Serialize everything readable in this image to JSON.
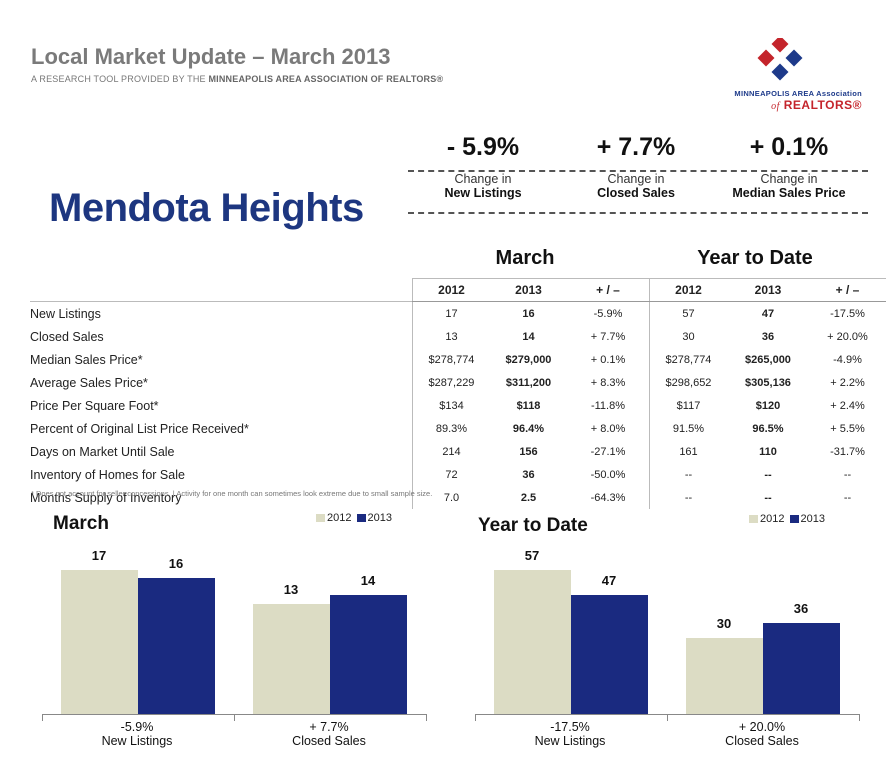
{
  "header": {
    "title": "Local Market Update – March 2013",
    "subtitle_pre": "A RESEARCH TOOL PROVIDED BY THE ",
    "subtitle_org": "MINNEAPOLIS AREA ASSOCIATION OF REALTORS®"
  },
  "logo": {
    "line1": "MINNEAPOLIS AREA Association",
    "of": "of",
    "line2": "REALTORS®"
  },
  "city": "Mendota Heights",
  "kpis": [
    {
      "value": "- 5.9%",
      "line1": "Change in",
      "line2": "New Listings"
    },
    {
      "value": "+ 7.7%",
      "line1": "Change in",
      "line2": "Closed Sales"
    },
    {
      "value": "+ 0.1%",
      "line1": "Change in",
      "line2": "Median Sales Price"
    }
  ],
  "table": {
    "group_march": "March",
    "group_ytd": "Year to Date",
    "headers": [
      "2012",
      "2013",
      "+ / –",
      "2012",
      "2013",
      "+ / –"
    ],
    "rows": [
      {
        "label": "New Listings",
        "cells": [
          "17",
          "16",
          "-5.9%",
          "57",
          "47",
          "-17.5%"
        ]
      },
      {
        "label": "Closed Sales",
        "cells": [
          "13",
          "14",
          "+ 7.7%",
          "30",
          "36",
          "+ 20.0%"
        ]
      },
      {
        "label": "Median Sales Price*",
        "cells": [
          "$278,774",
          "$279,000",
          "+ 0.1%",
          "$278,774",
          "$265,000",
          "-4.9%"
        ]
      },
      {
        "label": "Average Sales Price*",
        "cells": [
          "$287,229",
          "$311,200",
          "+ 8.3%",
          "$298,652",
          "$305,136",
          "+ 2.2%"
        ]
      },
      {
        "label": "Price Per Square Foot*",
        "cells": [
          "$134",
          "$118",
          "-11.8%",
          "$117",
          "$120",
          "+ 2.4%"
        ]
      },
      {
        "label": "Percent of Original List Price Received*",
        "cells": [
          "89.3%",
          "96.4%",
          "+ 8.0%",
          "91.5%",
          "96.5%",
          "+ 5.5%"
        ]
      },
      {
        "label": "Days on Market Until Sale",
        "cells": [
          "214",
          "156",
          "-27.1%",
          "161",
          "110",
          "-31.7%"
        ]
      },
      {
        "label": "Inventory of Homes for Sale",
        "cells": [
          "72",
          "36",
          "-50.0%",
          "--",
          "--",
          "--"
        ]
      },
      {
        "label": "Months Supply of Inventory",
        "cells": [
          "7.0",
          "2.5",
          "-64.3%",
          "--",
          "--",
          "--"
        ]
      }
    ],
    "footnote": "* Does not account for seller concessions.  |  Activity for one month can sometimes look extreme due to small sample size."
  },
  "colors": {
    "y2012": "#dcdcc4",
    "y2013": "#1a2a80"
  },
  "chart_data": [
    {
      "type": "bar",
      "title": "March",
      "legend": [
        "2012",
        "2013"
      ],
      "legend_position": "top-right",
      "categories": [
        "New Listings",
        "Closed Sales"
      ],
      "category_changes": [
        "-5.9%",
        "+ 7.7%"
      ],
      "series": [
        {
          "name": "2012",
          "values": [
            17,
            13
          ]
        },
        {
          "name": "2013",
          "values": [
            16,
            14
          ]
        }
      ]
    },
    {
      "type": "bar",
      "title": "Year to Date",
      "legend": [
        "2012",
        "2013"
      ],
      "legend_position": "top-right",
      "categories": [
        "New Listings",
        "Closed Sales"
      ],
      "category_changes": [
        "-17.5%",
        "+ 20.0%"
      ],
      "series": [
        {
          "name": "2012",
          "values": [
            57,
            30
          ]
        },
        {
          "name": "2013",
          "values": [
            47,
            36
          ]
        }
      ]
    }
  ]
}
